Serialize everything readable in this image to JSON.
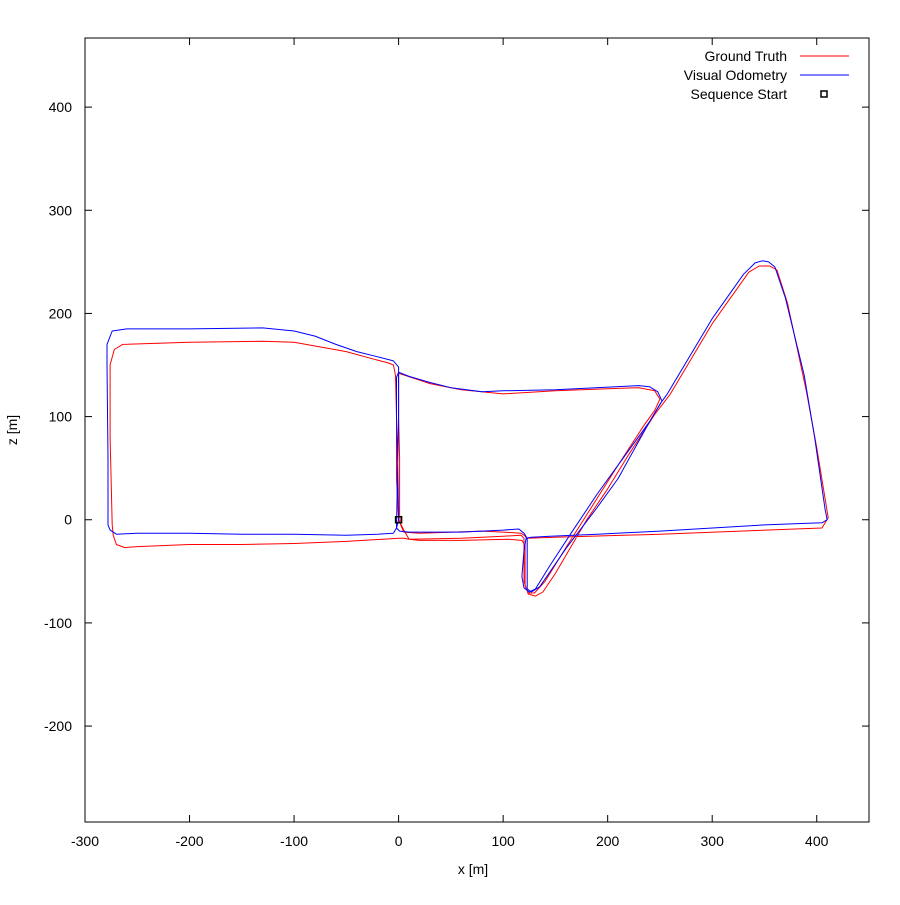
{
  "chart_data": {
    "type": "line",
    "xlabel": "x [m]",
    "ylabel": "z [m]",
    "xlim": [
      -300,
      450
    ],
    "ylim": [
      -293,
      467
    ],
    "xticks": [
      -300,
      -200,
      -100,
      0,
      100,
      200,
      300,
      400
    ],
    "yticks": [
      -200,
      -100,
      0,
      100,
      200,
      300,
      400
    ],
    "xtick_labels": [
      "-300",
      "-200",
      "-100",
      "0",
      "100",
      "200",
      "300",
      "400"
    ],
    "ytick_labels": [
      "-200",
      "-100",
      "0",
      "100",
      "200",
      "300",
      "400"
    ],
    "grid": false,
    "legend_position": "top-right",
    "legend": [
      {
        "label": "Ground Truth",
        "kind": "line",
        "color": "#ff0000"
      },
      {
        "label": "Visual Odometry",
        "kind": "line",
        "color": "#0000ff"
      },
      {
        "label": "Sequence Start",
        "kind": "marker",
        "color": "#000000"
      }
    ],
    "series": [
      {
        "name": "Ground Truth",
        "color": "#ff0000",
        "points": [
          [
            0,
            0
          ],
          [
            5,
            -10
          ],
          [
            10,
            -19
          ],
          [
            60,
            -18
          ],
          [
            100,
            -16
          ],
          [
            117,
            -15
          ],
          [
            120,
            -18
          ],
          [
            120,
            -60
          ],
          [
            124,
            -72
          ],
          [
            131,
            -74
          ],
          [
            138,
            -70
          ],
          [
            150,
            -52
          ],
          [
            180,
            0
          ],
          [
            200,
            30
          ],
          [
            220,
            63
          ],
          [
            245,
            102
          ],
          [
            260,
            122
          ],
          [
            300,
            190
          ],
          [
            335,
            240
          ],
          [
            345,
            246
          ],
          [
            355,
            246
          ],
          [
            362,
            242
          ],
          [
            372,
            210
          ],
          [
            390,
            125
          ],
          [
            400,
            70
          ],
          [
            411,
            2
          ],
          [
            405,
            -8
          ],
          [
            250,
            -14
          ],
          [
            150,
            -17
          ],
          [
            123,
            -18
          ],
          [
            120,
            -15
          ],
          [
            117,
            -13
          ],
          [
            100,
            -12
          ],
          [
            80,
            -11
          ],
          [
            20,
            -13
          ],
          [
            5,
            -12
          ],
          [
            2,
            -5
          ],
          [
            1,
            5
          ],
          [
            1,
            60
          ],
          [
            0,
            100
          ],
          [
            0,
            135
          ],
          [
            0,
            142
          ],
          [
            30,
            132
          ],
          [
            60,
            126
          ],
          [
            100,
            122
          ],
          [
            150,
            125
          ],
          [
            200,
            127
          ],
          [
            230,
            128
          ],
          [
            245,
            125
          ],
          [
            250,
            117
          ],
          [
            245,
            106
          ],
          [
            235,
            92
          ],
          [
            210,
            53
          ],
          [
            180,
            5
          ],
          [
            160,
            -27
          ],
          [
            140,
            -60
          ],
          [
            130,
            -71
          ],
          [
            124,
            -71
          ],
          [
            121,
            -64
          ],
          [
            121,
            -25
          ],
          [
            118,
            -20
          ],
          [
            105,
            -19
          ],
          [
            60,
            -20
          ],
          [
            20,
            -20
          ],
          [
            10,
            -19
          ],
          [
            5,
            -18
          ],
          [
            0,
            -18
          ],
          [
            -50,
            -21
          ],
          [
            -100,
            -23
          ],
          [
            -150,
            -24
          ],
          [
            -200,
            -24
          ],
          [
            -250,
            -26
          ],
          [
            -262,
            -27
          ],
          [
            -270,
            -24
          ],
          [
            -273,
            -15
          ],
          [
            -274,
            -5
          ],
          [
            -276,
            80
          ],
          [
            -276,
            150
          ],
          [
            -272,
            165
          ],
          [
            -264,
            170
          ],
          [
            -200,
            172
          ],
          [
            -130,
            173
          ],
          [
            -100,
            172
          ],
          [
            -50,
            163
          ],
          [
            -25,
            156
          ],
          [
            -10,
            152
          ],
          [
            -5,
            150
          ],
          [
            -3,
            140
          ],
          [
            -2,
            100
          ],
          [
            -2,
            40
          ],
          [
            0,
            0
          ]
        ]
      },
      {
        "name": "Visual Odometry",
        "color": "#0000ff",
        "points": [
          [
            0,
            0
          ],
          [
            -2,
            -8
          ],
          [
            -5,
            -13
          ],
          [
            -20,
            -14
          ],
          [
            -50,
            -15
          ],
          [
            -100,
            -14
          ],
          [
            -150,
            -14
          ],
          [
            -200,
            -13
          ],
          [
            -250,
            -13
          ],
          [
            -270,
            -14
          ],
          [
            -276,
            -10
          ],
          [
            -278,
            -5
          ],
          [
            -278,
            60
          ],
          [
            -279,
            150
          ],
          [
            -279,
            170
          ],
          [
            -274,
            183
          ],
          [
            -260,
            185
          ],
          [
            -200,
            185
          ],
          [
            -130,
            186
          ],
          [
            -100,
            183
          ],
          [
            -80,
            178
          ],
          [
            -60,
            170
          ],
          [
            -40,
            163
          ],
          [
            -20,
            158
          ],
          [
            -5,
            154
          ],
          [
            0,
            148
          ],
          [
            0,
            100
          ],
          [
            -1,
            50
          ],
          [
            -2,
            -8
          ],
          [
            1,
            -11
          ],
          [
            10,
            -12
          ],
          [
            60,
            -12
          ],
          [
            100,
            -10
          ],
          [
            115,
            -9
          ],
          [
            120,
            -13
          ],
          [
            123,
            -18
          ],
          [
            123,
            -30
          ],
          [
            123,
            -67
          ],
          [
            127,
            -70
          ],
          [
            135,
            -65
          ],
          [
            160,
            -28
          ],
          [
            190,
            12
          ],
          [
            210,
            40
          ],
          [
            240,
            95
          ],
          [
            250,
            112
          ],
          [
            257,
            122
          ],
          [
            300,
            195
          ],
          [
            330,
            238
          ],
          [
            341,
            249
          ],
          [
            348,
            251
          ],
          [
            354,
            250
          ],
          [
            360,
            245
          ],
          [
            370,
            215
          ],
          [
            388,
            140
          ],
          [
            398,
            80
          ],
          [
            408,
            10
          ],
          [
            410,
            0
          ],
          [
            405,
            -3
          ],
          [
            350,
            -5
          ],
          [
            250,
            -11
          ],
          [
            190,
            -14
          ],
          [
            145,
            -16
          ],
          [
            127,
            -17
          ],
          [
            122,
            -18
          ],
          [
            120,
            -30
          ],
          [
            118,
            -55
          ],
          [
            120,
            -66
          ],
          [
            125,
            -70
          ],
          [
            131,
            -67
          ],
          [
            145,
            -44
          ],
          [
            165,
            -13
          ],
          [
            190,
            25
          ],
          [
            220,
            67
          ],
          [
            240,
            95
          ],
          [
            252,
            115
          ],
          [
            248,
            124
          ],
          [
            240,
            129
          ],
          [
            230,
            130
          ],
          [
            150,
            126
          ],
          [
            100,
            125
          ],
          [
            80,
            124
          ],
          [
            50,
            128
          ],
          [
            30,
            133
          ],
          [
            10,
            139
          ],
          [
            0,
            143
          ],
          [
            -2,
            138
          ],
          [
            -2,
            100
          ],
          [
            -1,
            60
          ],
          [
            0,
            0
          ]
        ]
      }
    ],
    "sequence_start": [
      0,
      0
    ]
  }
}
